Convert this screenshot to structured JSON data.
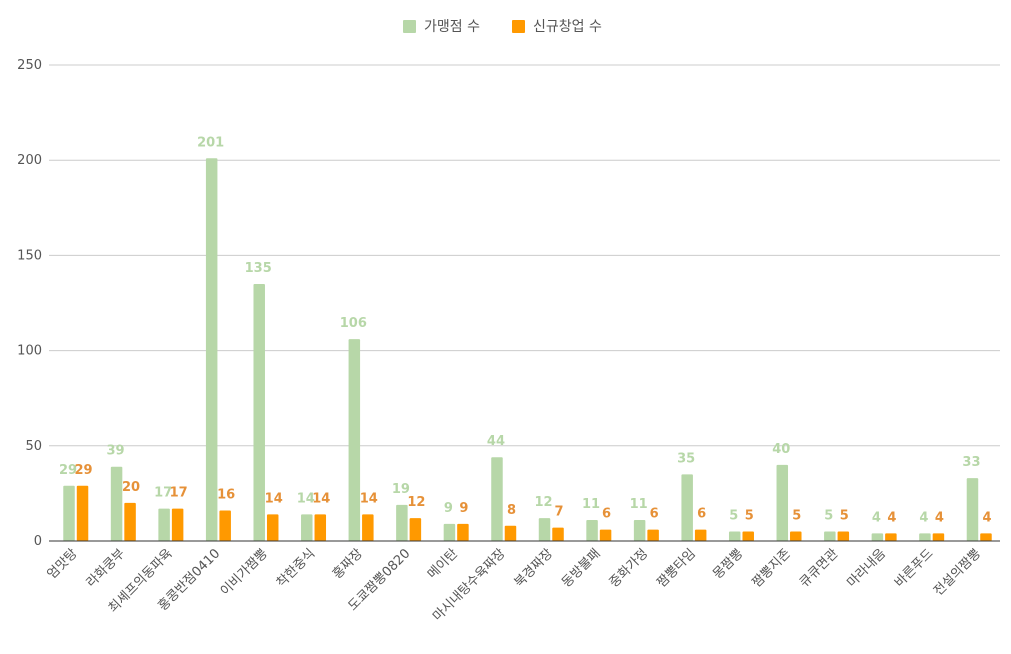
{
  "colors": {
    "franchise": "#b7d7a8",
    "new_startups": "#ff9900",
    "franchise_label": "#b7d7a8",
    "new_startups_label": "#e69138",
    "grid": "#cccccc",
    "axis": "#333333"
  },
  "chart_data": {
    "type": "bar",
    "title": "",
    "xlabel": "",
    "ylabel": "",
    "ylim": [
      0,
      250
    ],
    "yticks": [
      0,
      50,
      100,
      150,
      200,
      250
    ],
    "grid": true,
    "legend_position": "top",
    "categories": [
      "엄맛탕",
      "라화쿵부",
      "최셰프의동파육",
      "홍콩반점0410",
      "이비가짬뽕",
      "착한중식",
      "홍짜장",
      "도쿄짬뽕0820",
      "메이탄",
      "마시내탕수육짜장",
      "북경짜장",
      "동방불패",
      "중화가정",
      "짬뽕타임",
      "몽짬뽕",
      "짬뽕지존",
      "큐큐면관",
      "마라내음",
      "바른푸드",
      "전설의짬뽕"
    ],
    "series": [
      {
        "name": "가맹점 수",
        "values": [
          29,
          39,
          17,
          201,
          135,
          14,
          106,
          19,
          9,
          44,
          12,
          11,
          11,
          35,
          5,
          40,
          5,
          4,
          4,
          33
        ]
      },
      {
        "name": "신규창업 수",
        "values": [
          29,
          20,
          17,
          16,
          14,
          14,
          14,
          12,
          9,
          8,
          7,
          6,
          6,
          6,
          5,
          5,
          5,
          4,
          4,
          4
        ]
      }
    ]
  }
}
